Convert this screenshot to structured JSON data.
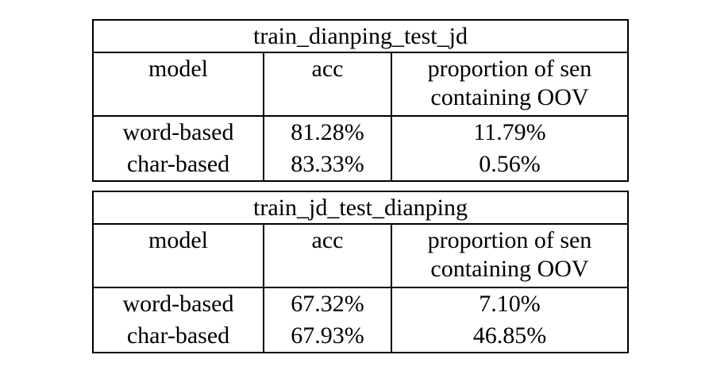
{
  "page": {
    "background": "#ffffff",
    "text_color": "#000000",
    "border_color": "#000000"
  },
  "tables": [
    {
      "title": "train_dianping_test_jd",
      "headers": {
        "model": "model",
        "acc": "acc",
        "oov_line1": "proportion of sen",
        "oov_line2": "containing OOV"
      },
      "rows": [
        {
          "model": "word-based",
          "acc": "81.28%",
          "oov": "11.79%"
        },
        {
          "model": "char-based",
          "acc": "83.33%",
          "oov": "0.56%"
        }
      ]
    },
    {
      "title": "train_jd_test_dianping",
      "headers": {
        "model": "model",
        "acc": "acc",
        "oov_line1": "proportion of sen",
        "oov_line2": "containing OOV"
      },
      "rows": [
        {
          "model": "word-based",
          "acc": "67.32%",
          "oov": "7.10%"
        },
        {
          "model": "char-based",
          "acc": "67.93%",
          "oov": "46.85%"
        }
      ]
    }
  ],
  "chart_data": [
    {
      "type": "table",
      "title": "train_dianping_test_jd",
      "columns": [
        "model",
        "acc",
        "proportion of sen containing OOV"
      ],
      "rows": [
        [
          "word-based",
          "81.28%",
          "11.79%"
        ],
        [
          "char-based",
          "83.33%",
          "0.56%"
        ]
      ]
    },
    {
      "type": "table",
      "title": "train_jd_test_dianping",
      "columns": [
        "model",
        "acc",
        "proportion of sen containing OOV"
      ],
      "rows": [
        [
          "word-based",
          "67.32%",
          "7.10%"
        ],
        [
          "char-based",
          "67.93%",
          "46.85%"
        ]
      ]
    }
  ]
}
